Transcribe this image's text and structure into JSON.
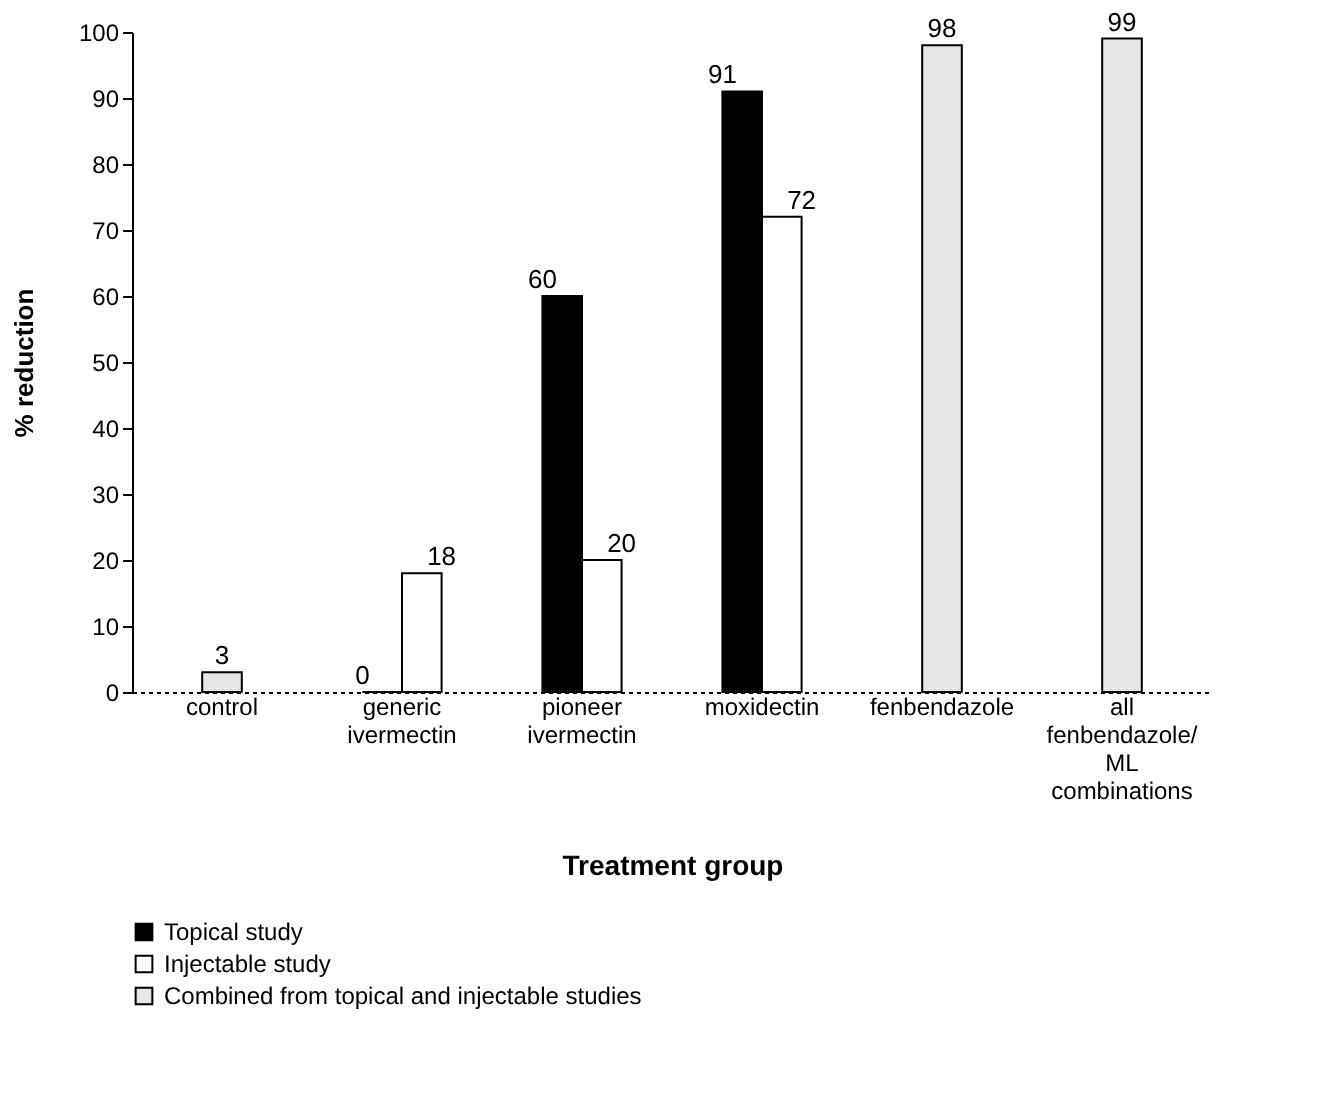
{
  "chart_data": {
    "type": "bar",
    "categories": [
      "control",
      "generic\nivermectin",
      "pioneer\nivermectin",
      "moxidectin",
      "fenbendazole",
      "all\nfenbendazole/\nML\ncombinations"
    ],
    "series": [
      {
        "name": "Topical study",
        "color": "#000000",
        "values": [
          null,
          0,
          60,
          91,
          null,
          null
        ]
      },
      {
        "name": "Injectable study",
        "color": "#ffffff",
        "values": [
          null,
          18,
          20,
          72,
          null,
          null
        ]
      },
      {
        "name": "Combined from topical and injectable studies",
        "color": "#e6e6e6",
        "values": [
          3,
          null,
          null,
          null,
          98,
          99
        ]
      }
    ],
    "xlabel": "Treatment group",
    "ylabel": "% reduction",
    "ylim": [
      0,
      100
    ],
    "yticks": [
      0,
      10,
      20,
      30,
      40,
      50,
      60,
      70,
      80,
      90,
      100
    ],
    "data_labels": true,
    "grid": false,
    "legend": "bottom left"
  }
}
